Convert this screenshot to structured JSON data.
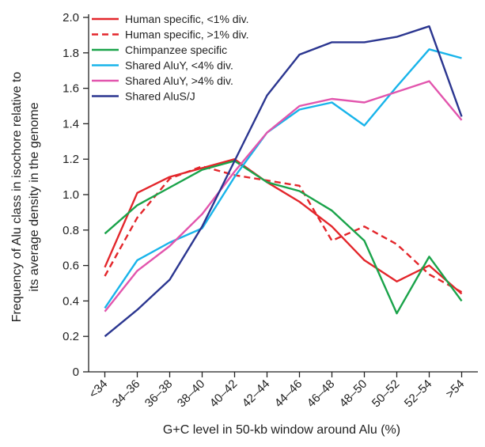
{
  "chart_data": {
    "type": "line",
    "categories": [
      "<34",
      "34–36",
      "36–38",
      "38–40",
      "40–42",
      "42–44",
      "44–46",
      "46–48",
      "48–50",
      "50–52",
      "52–54",
      ">54"
    ],
    "xlabel": "G+C level in 50-kb window around Alu (%)",
    "ylabel_line1": "Frequency of Alu class in isochore relative to",
    "ylabel_line2": "its average density in the genome",
    "ylim": [
      0,
      2.0
    ],
    "yticks": [
      "0",
      "0.2",
      "0.4",
      "0.6",
      "0.8",
      "1.0",
      "1.2",
      "1.4",
      "1.6",
      "1.8",
      "2.0"
    ],
    "ytick_values": [
      0,
      0.2,
      0.4,
      0.6,
      0.8,
      1.0,
      1.2,
      1.4,
      1.6,
      1.8,
      2.0
    ],
    "grid": false,
    "legend_position": "top-left",
    "series": [
      {
        "name": "Human specific, <1% div.",
        "color": "#e3262b",
        "dash": "solid",
        "values": [
          0.59,
          1.01,
          1.1,
          1.15,
          1.2,
          1.07,
          0.96,
          0.82,
          0.63,
          0.51,
          0.6,
          0.44
        ]
      },
      {
        "name": "Human specific, >1% div.",
        "color": "#e3262b",
        "dash": "dashed",
        "values": [
          0.54,
          0.87,
          1.09,
          1.16,
          1.11,
          1.08,
          1.05,
          0.74,
          0.82,
          0.72,
          0.55,
          0.45
        ]
      },
      {
        "name": "Chimpanzee specific",
        "color": "#1aa34a",
        "dash": "solid",
        "values": [
          0.78,
          0.94,
          1.04,
          1.14,
          1.19,
          1.07,
          1.02,
          0.91,
          0.74,
          0.33,
          0.65,
          0.4
        ]
      },
      {
        "name": "Shared AluY, <4% div.",
        "color": "#18b4ea",
        "dash": "solid",
        "values": [
          0.36,
          0.63,
          0.73,
          0.81,
          1.1,
          1.35,
          1.48,
          1.52,
          1.39,
          1.61,
          1.82,
          1.77
        ]
      },
      {
        "name": "Shared AluY, >4% div.",
        "color": "#e255ad",
        "dash": "solid",
        "values": [
          0.34,
          0.57,
          0.71,
          0.89,
          1.13,
          1.35,
          1.5,
          1.54,
          1.52,
          1.58,
          1.64,
          1.42
        ]
      },
      {
        "name": "Shared AluS/J",
        "color": "#2b3690",
        "dash": "solid",
        "values": [
          0.2,
          0.35,
          0.52,
          0.82,
          1.19,
          1.56,
          1.79,
          1.86,
          1.86,
          1.89,
          1.95,
          1.44
        ]
      }
    ]
  }
}
